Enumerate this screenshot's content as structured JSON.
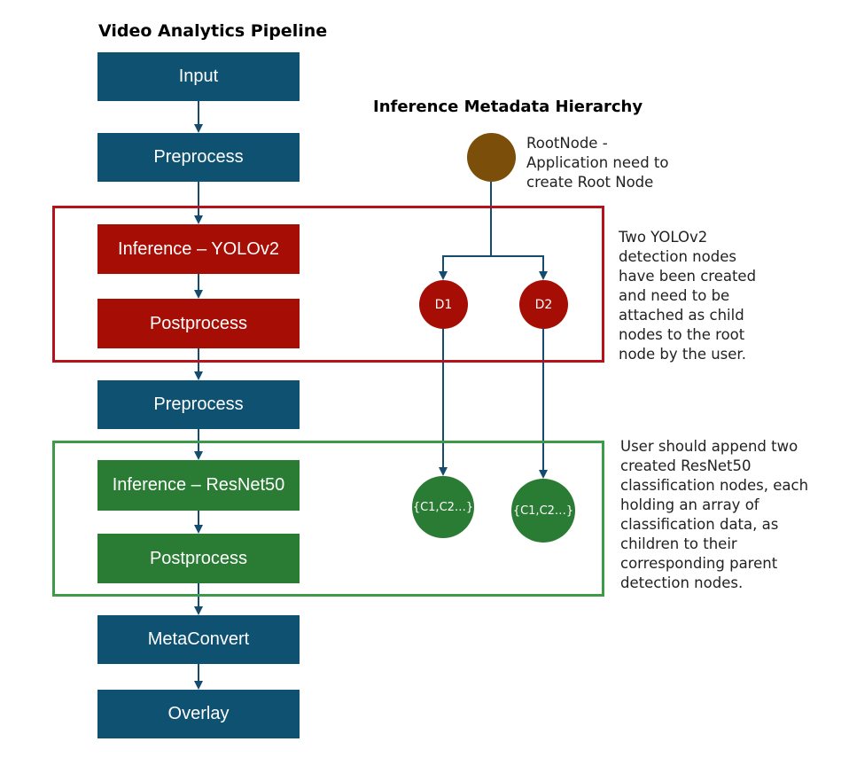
{
  "colors": {
    "blue": "#0f5170",
    "red": "#a50d05",
    "green": "#2a7b33",
    "root": "#7b4f0a",
    "arrow": "#134c6e",
    "red_frame": "#b4131b",
    "green_frame": "#3d9a46"
  },
  "pipeline": {
    "title": "Video Analytics Pipeline",
    "stages": {
      "input": "Input",
      "preprocess1": "Preprocess",
      "inference_yolo": "Inference – YOLOv2",
      "postprocess1": "Postprocess",
      "preprocess2": "Preprocess",
      "inference_resnet": "Inference – ResNet50",
      "postprocess2": "Postprocess",
      "metaconvert": "MetaConvert",
      "overlay": "Overlay"
    }
  },
  "hierarchy": {
    "title": "Inference Metadata Hierarchy",
    "root_note": [
      "RootNode -",
      "Application need to",
      "create Root Node"
    ],
    "detection_nodes": [
      "D1",
      "D2"
    ],
    "classification_nodes": [
      "{C1,C2…}",
      "{C1,C2…}"
    ],
    "detection_note": [
      "Two YOLOv2",
      "detection nodes",
      "have been created",
      "and need to be",
      "attached as child",
      "nodes to the root",
      "node by the user."
    ],
    "classification_note": [
      "User should append two",
      "created ResNet50",
      "classification nodes, each",
      "holding an array of",
      "classification data, as",
      "children to their",
      "corresponding parent",
      "detection nodes."
    ]
  }
}
